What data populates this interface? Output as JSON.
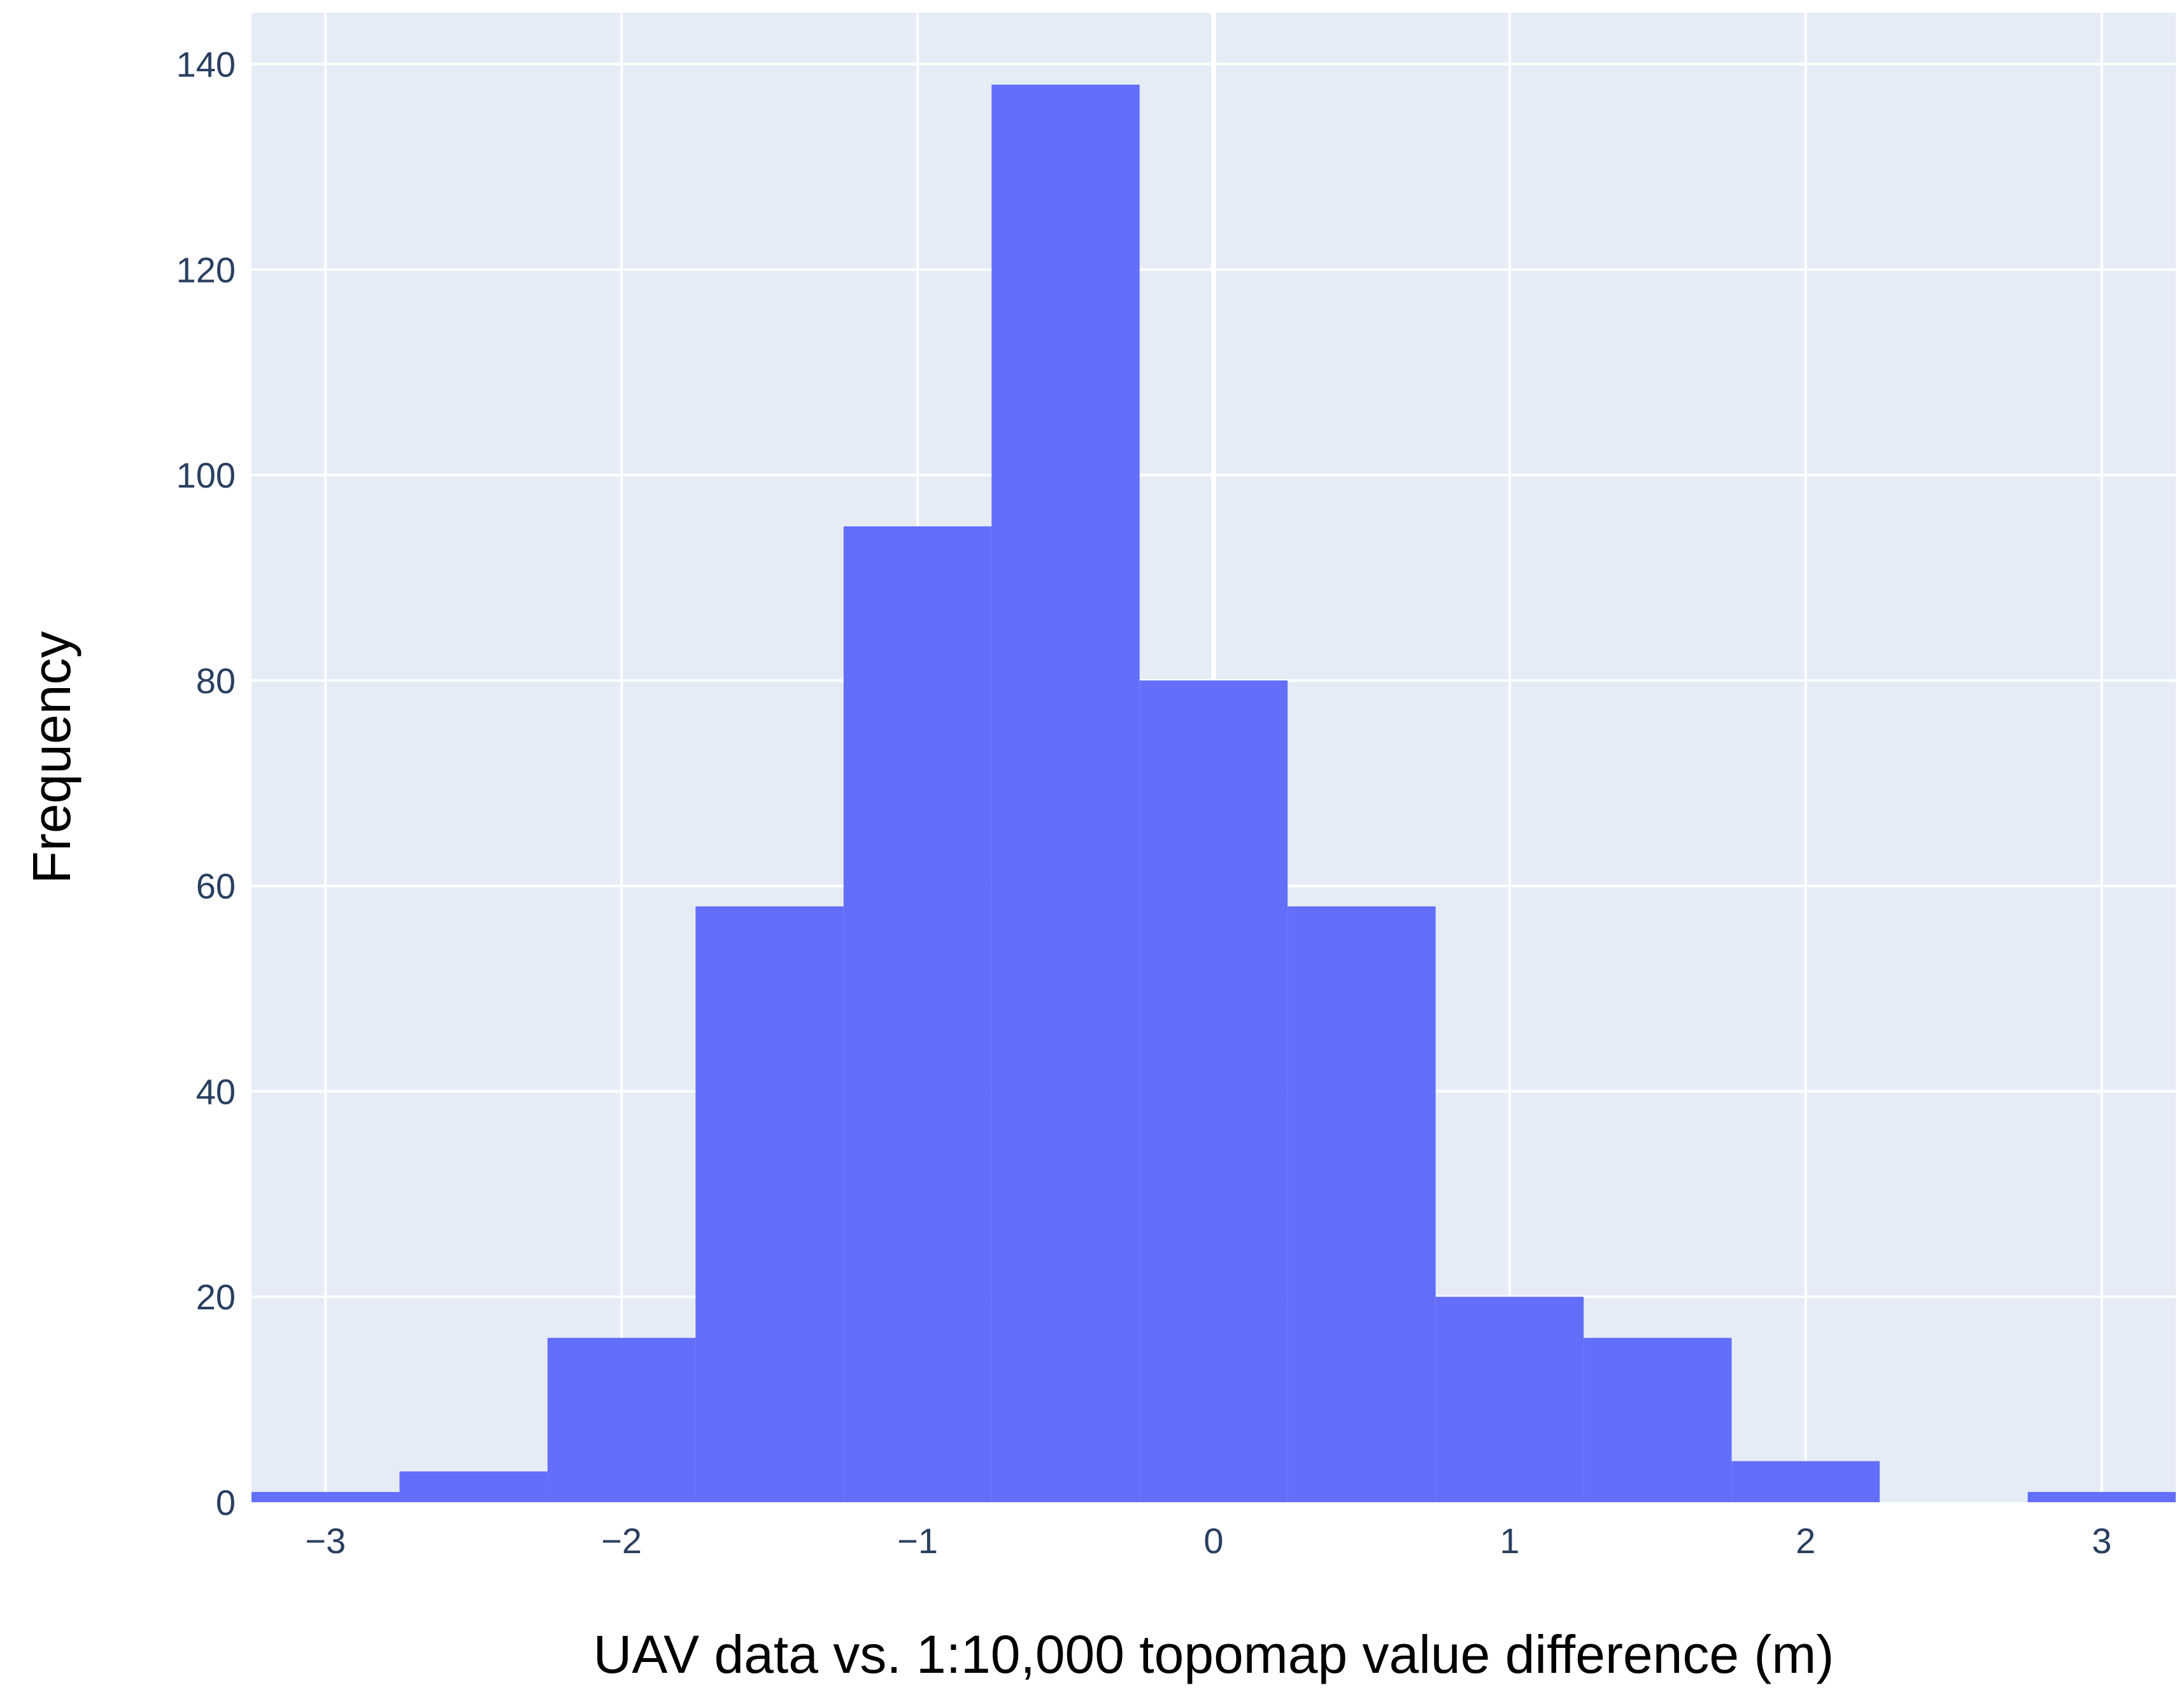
{
  "chart_data": {
    "type": "histogram",
    "xlabel": "UAV data vs. 1:10,000 topomap value difference (m)",
    "ylabel": "Frequency",
    "xlim": [
      -3.25,
      3.25
    ],
    "ylim": [
      0,
      145
    ],
    "x_ticks": [
      -3,
      -2,
      -1,
      0,
      1,
      2,
      3
    ],
    "x_tick_labels": [
      "−3",
      "−2",
      "−1",
      "0",
      "1",
      "2",
      "3"
    ],
    "y_ticks": [
      0,
      20,
      40,
      60,
      80,
      100,
      120,
      140
    ],
    "y_tick_labels": [
      "0",
      "20",
      "40",
      "60",
      "80",
      "100",
      "120",
      "140"
    ],
    "bins": [
      {
        "x0": -3.25,
        "x1": -2.75,
        "count": 1
      },
      {
        "x0": -2.75,
        "x1": -2.25,
        "count": 3
      },
      {
        "x0": -2.25,
        "x1": -1.75,
        "count": 16
      },
      {
        "x0": -1.75,
        "x1": -1.25,
        "count": 58
      },
      {
        "x0": -1.25,
        "x1": -0.75,
        "count": 95
      },
      {
        "x0": -0.75,
        "x1": -0.25,
        "count": 138
      },
      {
        "x0": -0.25,
        "x1": 0.25,
        "count": 80
      },
      {
        "x0": 0.25,
        "x1": 0.75,
        "count": 58
      },
      {
        "x0": 0.75,
        "x1": 1.25,
        "count": 20
      },
      {
        "x0": 1.25,
        "x1": 1.75,
        "count": 16
      },
      {
        "x0": 1.75,
        "x1": 2.25,
        "count": 4
      },
      {
        "x0": 2.25,
        "x1": 2.75,
        "count": 0
      },
      {
        "x0": 2.75,
        "x1": 3.25,
        "count": 1
      }
    ],
    "grid": true,
    "colors": {
      "plot_background": "#e5ecf6",
      "grid": "#ffffff",
      "bar": "#636efa",
      "tick_text": "#2a3f5f",
      "title_text": "#000000"
    }
  }
}
